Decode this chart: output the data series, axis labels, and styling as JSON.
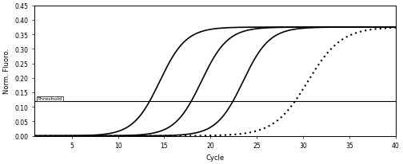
{
  "title": "",
  "xlabel": "Cycle",
  "ylabel": "Norm. Fluoro.",
  "xlim": [
    1,
    40
  ],
  "ylim": [
    0.0,
    0.45
  ],
  "yticks": [
    0.0,
    0.05,
    0.1,
    0.15,
    0.2,
    0.25,
    0.3,
    0.35,
    0.4,
    0.45
  ],
  "xticks": [
    5,
    10,
    15,
    20,
    25,
    30,
    35,
    40
  ],
  "threshold": 0.12,
  "threshold_label": "Threshold",
  "curves": [
    {
      "midpoint": 14.5,
      "slope": 0.7,
      "style": "solid",
      "color": "#000000",
      "lw": 1.2
    },
    {
      "midpoint": 19.0,
      "slope": 0.7,
      "style": "solid",
      "color": "#000000",
      "lw": 1.2
    },
    {
      "midpoint": 23.5,
      "slope": 0.7,
      "style": "solid",
      "color": "#000000",
      "lw": 1.2
    },
    {
      "midpoint": 30.5,
      "slope": 0.55,
      "style": "dotted",
      "color": "#000000",
      "lw": 1.5
    }
  ],
  "background_color": "#ffffff",
  "curve_max": 0.375
}
